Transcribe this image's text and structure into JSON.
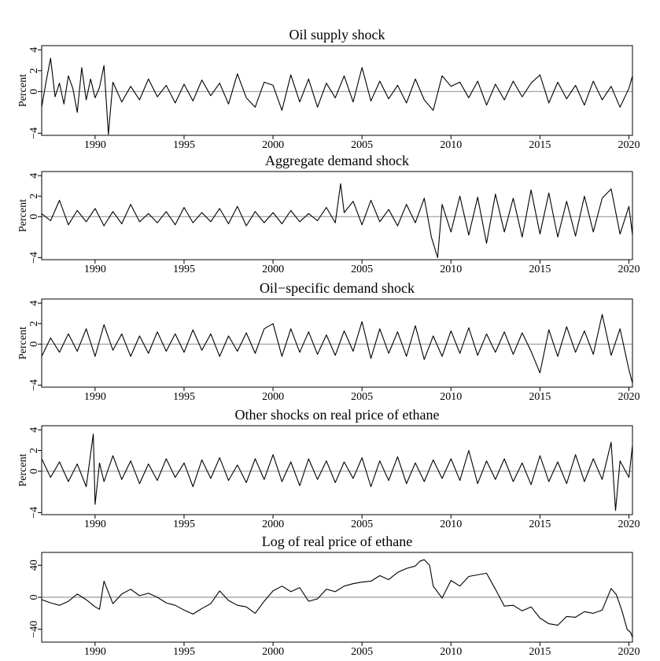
{
  "chart_data": [
    {
      "type": "line",
      "title": "Oil supply shock",
      "ylabel": "Percent",
      "xlim": [
        1987.0,
        2020.2
      ],
      "ylim": [
        -4.2,
        4.4
      ],
      "yticks": [
        -4,
        0,
        2,
        4
      ],
      "yticklabels": [
        "−4",
        "0",
        "2",
        "4"
      ],
      "xticks": [
        1990,
        1995,
        2000,
        2005,
        2010,
        2015,
        2020
      ],
      "xticklabels": [
        "1990",
        "1995",
        "2000",
        "2005",
        "2010",
        "2015",
        "2020"
      ],
      "zero_line": true,
      "colors": {
        "line": "#000000",
        "zero": "#999999"
      },
      "series": [
        {
          "x": [
            1987.0,
            1987.25,
            1987.5,
            1987.75,
            1988.0,
            1988.25,
            1988.5,
            1988.75,
            1989.0,
            1989.25,
            1989.5,
            1989.75,
            1990.0,
            1990.25,
            1990.5,
            1990.75,
            1991.0,
            1991.5,
            1992.0,
            1992.5,
            1993.0,
            1993.5,
            1994.0,
            1994.5,
            1995.0,
            1995.5,
            1996.0,
            1996.5,
            1997.0,
            1997.5,
            1998.0,
            1998.5,
            1999.0,
            1999.5,
            2000.0,
            2000.5,
            2001.0,
            2001.5,
            2002.0,
            2002.5,
            2003.0,
            2003.5,
            2004.0,
            2004.5,
            2005.0,
            2005.5,
            2006.0,
            2006.5,
            2007.0,
            2007.5,
            2008.0,
            2008.5,
            2009.0,
            2009.5,
            2010.0,
            2010.5,
            2011.0,
            2011.5,
            2012.0,
            2012.5,
            2013.0,
            2013.5,
            2014.0,
            2014.5,
            2015.0,
            2015.5,
            2016.0,
            2016.5,
            2017.0,
            2017.5,
            2018.0,
            2018.5,
            2019.0,
            2019.5,
            2020.0,
            2020.2
          ],
          "y": [
            -1.5,
            1.0,
            3.2,
            -0.5,
            0.8,
            -1.2,
            1.5,
            0.3,
            -2.0,
            2.3,
            -0.8,
            1.2,
            -0.6,
            0.4,
            2.5,
            -4.1,
            0.9,
            -1.0,
            0.5,
            -0.8,
            1.2,
            -0.5,
            0.6,
            -1.1,
            0.7,
            -0.9,
            1.1,
            -0.4,
            0.8,
            -1.2,
            1.7,
            -0.6,
            -1.5,
            0.9,
            0.6,
            -1.8,
            1.6,
            -1.0,
            1.2,
            -1.5,
            0.8,
            -0.6,
            1.5,
            -1.0,
            2.3,
            -0.9,
            1.0,
            -0.7,
            0.6,
            -1.1,
            1.2,
            -0.8,
            -1.8,
            1.5,
            0.5,
            0.9,
            -0.6,
            1.0,
            -1.3,
            0.7,
            -0.8,
            1.0,
            -0.5,
            0.8,
            1.6,
            -1.1,
            0.9,
            -0.7,
            0.6,
            -1.3,
            1.0,
            -0.8,
            0.5,
            -1.5,
            0.3,
            1.5
          ]
        }
      ]
    },
    {
      "type": "line",
      "title": "Aggregate demand shock",
      "ylabel": "Percent",
      "xlim": [
        1987.0,
        2020.2
      ],
      "ylim": [
        -4.2,
        4.4
      ],
      "yticks": [
        -4,
        0,
        2,
        4
      ],
      "yticklabels": [
        "−4",
        "0",
        "2",
        "4"
      ],
      "xticks": [
        1990,
        1995,
        2000,
        2005,
        2010,
        2015,
        2020
      ],
      "xticklabels": [
        "1990",
        "1995",
        "2000",
        "2005",
        "2010",
        "2015",
        "2020"
      ],
      "zero_line": true,
      "colors": {
        "line": "#000000",
        "zero": "#999999"
      },
      "series": [
        {
          "x": [
            1987.0,
            1987.5,
            1988.0,
            1988.5,
            1989.0,
            1989.5,
            1990.0,
            1990.5,
            1991.0,
            1991.5,
            1992.0,
            1992.5,
            1993.0,
            1993.5,
            1994.0,
            1994.5,
            1995.0,
            1995.5,
            1996.0,
            1996.5,
            1997.0,
            1997.5,
            1998.0,
            1998.5,
            1999.0,
            1999.5,
            2000.0,
            2000.5,
            2001.0,
            2001.5,
            2002.0,
            2002.5,
            2003.0,
            2003.5,
            2003.8,
            2004.0,
            2004.5,
            2005.0,
            2005.5,
            2006.0,
            2006.5,
            2007.0,
            2007.5,
            2008.0,
            2008.5,
            2008.9,
            2009.25,
            2009.5,
            2010.0,
            2010.5,
            2011.0,
            2011.5,
            2012.0,
            2012.5,
            2013.0,
            2013.5,
            2014.0,
            2014.5,
            2015.0,
            2015.5,
            2016.0,
            2016.5,
            2017.0,
            2017.5,
            2018.0,
            2018.5,
            2019.0,
            2019.5,
            2020.0,
            2020.2
          ],
          "y": [
            0.3,
            -0.4,
            1.6,
            -0.8,
            0.6,
            -0.5,
            0.8,
            -0.9,
            0.5,
            -0.7,
            1.2,
            -0.5,
            0.3,
            -0.6,
            0.5,
            -0.8,
            0.9,
            -0.6,
            0.4,
            -0.5,
            0.8,
            -0.7,
            1.0,
            -0.9,
            0.5,
            -0.6,
            0.4,
            -0.7,
            0.6,
            -0.5,
            0.3,
            -0.4,
            0.9,
            -0.6,
            3.2,
            0.4,
            1.5,
            -0.8,
            1.6,
            -0.5,
            0.7,
            -0.9,
            1.2,
            -0.6,
            1.8,
            -2.0,
            -4.0,
            1.2,
            -1.5,
            2.0,
            -1.8,
            1.9,
            -2.6,
            2.2,
            -1.5,
            1.8,
            -2.0,
            2.6,
            -1.7,
            2.3,
            -2.0,
            1.5,
            -1.9,
            2.0,
            -1.5,
            1.8,
            2.7,
            -1.7,
            1.0,
            -1.8
          ]
        }
      ]
    },
    {
      "type": "line",
      "title": "Oil−specific demand shock",
      "ylabel": "Percent",
      "xlim": [
        1987.0,
        2020.2
      ],
      "ylim": [
        -4.2,
        4.4
      ],
      "yticks": [
        -4,
        0,
        2,
        4
      ],
      "yticklabels": [
        "−4",
        "0",
        "2",
        "4"
      ],
      "xticks": [
        1990,
        1995,
        2000,
        2005,
        2010,
        2015,
        2020
      ],
      "xticklabels": [
        "1990",
        "1995",
        "2000",
        "2005",
        "2010",
        "2015",
        "2020"
      ],
      "zero_line": true,
      "colors": {
        "line": "#000000",
        "zero": "#999999"
      },
      "series": [
        {
          "x": [
            1987.0,
            1987.5,
            1988.0,
            1988.5,
            1989.0,
            1989.5,
            1990.0,
            1990.5,
            1991.0,
            1991.5,
            1992.0,
            1992.5,
            1993.0,
            1993.5,
            1994.0,
            1994.5,
            1995.0,
            1995.5,
            1996.0,
            1996.5,
            1997.0,
            1997.5,
            1998.0,
            1998.5,
            1999.0,
            1999.5,
            2000.0,
            2000.5,
            2001.0,
            2001.5,
            2002.0,
            2002.5,
            2003.0,
            2003.5,
            2004.0,
            2004.5,
            2005.0,
            2005.5,
            2006.0,
            2006.5,
            2007.0,
            2007.5,
            2008.0,
            2008.5,
            2009.0,
            2009.5,
            2010.0,
            2010.5,
            2011.0,
            2011.5,
            2012.0,
            2012.5,
            2013.0,
            2013.5,
            2014.0,
            2014.5,
            2015.0,
            2015.5,
            2016.0,
            2016.5,
            2017.0,
            2017.5,
            2018.0,
            2018.5,
            2019.0,
            2019.5,
            2020.0,
            2020.2
          ],
          "y": [
            -1.2,
            0.6,
            -0.8,
            1.0,
            -0.7,
            1.5,
            -1.2,
            1.9,
            -0.6,
            1.0,
            -1.2,
            0.8,
            -0.9,
            1.2,
            -0.7,
            1.0,
            -0.8,
            1.4,
            -0.6,
            1.0,
            -1.2,
            0.8,
            -0.7,
            1.1,
            -0.9,
            1.5,
            2.0,
            -1.2,
            1.5,
            -0.8,
            1.2,
            -1.0,
            0.9,
            -1.1,
            1.3,
            -0.7,
            2.2,
            -1.4,
            1.5,
            -0.9,
            1.2,
            -1.2,
            1.8,
            -1.5,
            0.8,
            -1.2,
            1.3,
            -0.9,
            1.6,
            -1.1,
            1.0,
            -0.8,
            1.2,
            -1.0,
            1.1,
            -0.7,
            -2.8,
            1.4,
            -1.2,
            1.7,
            -0.8,
            1.3,
            -1.0,
            2.9,
            -1.1,
            1.5,
            -2.5,
            -3.8
          ]
        }
      ]
    },
    {
      "type": "line",
      "title": "Other shocks on real price of ethane",
      "ylabel": "Percent",
      "xlim": [
        1987.0,
        2020.2
      ],
      "ylim": [
        -4.2,
        4.4
      ],
      "yticks": [
        -4,
        0,
        2,
        4
      ],
      "yticklabels": [
        "−4",
        "0",
        "2",
        "4"
      ],
      "xticks": [
        1990,
        1995,
        2000,
        2005,
        2010,
        2015,
        2020
      ],
      "xticklabels": [
        "1990",
        "1995",
        "2000",
        "2005",
        "2010",
        "2015",
        "2020"
      ],
      "zero_line": true,
      "colors": {
        "line": "#000000",
        "zero": "#999999"
      },
      "series": [
        {
          "x": [
            1987.0,
            1987.5,
            1988.0,
            1988.5,
            1989.0,
            1989.5,
            1989.9,
            1990.0,
            1990.25,
            1990.5,
            1991.0,
            1991.5,
            1992.0,
            1992.5,
            1993.0,
            1993.5,
            1994.0,
            1994.5,
            1995.0,
            1995.5,
            1996.0,
            1996.5,
            1997.0,
            1997.5,
            1998.0,
            1998.5,
            1999.0,
            1999.5,
            2000.0,
            2000.5,
            2001.0,
            2001.5,
            2002.0,
            2002.5,
            2003.0,
            2003.5,
            2004.0,
            2004.5,
            2005.0,
            2005.5,
            2006.0,
            2006.5,
            2007.0,
            2007.5,
            2008.0,
            2008.5,
            2009.0,
            2009.5,
            2010.0,
            2010.5,
            2011.0,
            2011.5,
            2012.0,
            2012.5,
            2013.0,
            2013.5,
            2014.0,
            2014.5,
            2015.0,
            2015.5,
            2016.0,
            2016.5,
            2017.0,
            2017.5,
            2018.0,
            2018.5,
            2019.0,
            2019.25,
            2019.5,
            2020.0,
            2020.2
          ],
          "y": [
            1.2,
            -0.6,
            0.9,
            -1.0,
            0.7,
            -1.5,
            3.6,
            -3.2,
            0.8,
            -1.0,
            1.5,
            -0.8,
            1.0,
            -1.2,
            0.7,
            -0.9,
            1.2,
            -0.6,
            0.8,
            -1.5,
            1.1,
            -0.7,
            1.3,
            -0.9,
            0.6,
            -1.1,
            1.2,
            -0.8,
            1.6,
            -1.0,
            0.9,
            -1.4,
            1.2,
            -0.8,
            1.0,
            -1.1,
            0.9,
            -0.7,
            1.3,
            -1.5,
            1.0,
            -0.9,
            1.4,
            -1.2,
            0.8,
            -1.0,
            1.1,
            -0.7,
            1.2,
            -0.9,
            2.0,
            -1.2,
            1.0,
            -0.8,
            1.2,
            -1.0,
            0.8,
            -1.3,
            1.5,
            -1.0,
            0.9,
            -1.2,
            1.6,
            -1.0,
            1.2,
            -0.8,
            2.8,
            -3.8,
            1.0,
            -0.6,
            2.5
          ]
        }
      ]
    },
    {
      "type": "line",
      "title": "Log of real price of ethane",
      "ylabel": "",
      "xlim": [
        1987.0,
        2020.2
      ],
      "ylim": [
        -56,
        56
      ],
      "yticks": [
        -40,
        0,
        40
      ],
      "yticklabels": [
        "−40",
        "0",
        "40"
      ],
      "xticks": [
        1990,
        1995,
        2000,
        2005,
        2010,
        2015,
        2020
      ],
      "xticklabels": [
        "1990",
        "1995",
        "2000",
        "2005",
        "2010",
        "2015",
        "2020"
      ],
      "zero_line": true,
      "colors": {
        "line": "#000000",
        "zero": "#999999"
      },
      "series": [
        {
          "x": [
            1987.0,
            1987.5,
            1988.0,
            1988.5,
            1989.0,
            1989.5,
            1990.0,
            1990.25,
            1990.5,
            1991.0,
            1991.5,
            1992.0,
            1992.5,
            1993.0,
            1993.5,
            1994.0,
            1994.5,
            1995.0,
            1995.5,
            1996.0,
            1996.5,
            1997.0,
            1997.5,
            1998.0,
            1998.5,
            1999.0,
            1999.5,
            2000.0,
            2000.5,
            2001.0,
            2001.5,
            2002.0,
            2002.5,
            2003.0,
            2003.5,
            2004.0,
            2004.5,
            2005.0,
            2005.5,
            2006.0,
            2006.5,
            2007.0,
            2007.5,
            2008.0,
            2008.25,
            2008.5,
            2008.8,
            2009.0,
            2009.5,
            2010.0,
            2010.5,
            2011.0,
            2011.5,
            2012.0,
            2012.5,
            2013.0,
            2013.5,
            2014.0,
            2014.5,
            2015.0,
            2015.5,
            2016.0,
            2016.5,
            2017.0,
            2017.5,
            2018.0,
            2018.5,
            2019.0,
            2019.3,
            2019.6,
            2019.9,
            2020.1,
            2020.2
          ],
          "y": [
            -3,
            -7,
            -10,
            -5,
            4,
            -3,
            -12,
            -15,
            20,
            -8,
            4,
            10,
            2,
            5,
            0,
            -7,
            -10,
            -16,
            -21,
            -14,
            -8,
            8,
            -4,
            -10,
            -12,
            -20,
            -5,
            8,
            14,
            7,
            12,
            -5,
            -2,
            10,
            7,
            14,
            17,
            19,
            20,
            27,
            22,
            31,
            36,
            39,
            45,
            47,
            40,
            14,
            -1,
            21,
            14,
            26,
            28,
            30,
            10,
            -11,
            -10,
            -17,
            -12,
            -26,
            -33,
            -35,
            -24,
            -25,
            -18,
            -20,
            -16,
            11,
            3,
            -16,
            -40,
            -44,
            -50
          ]
        }
      ]
    }
  ]
}
